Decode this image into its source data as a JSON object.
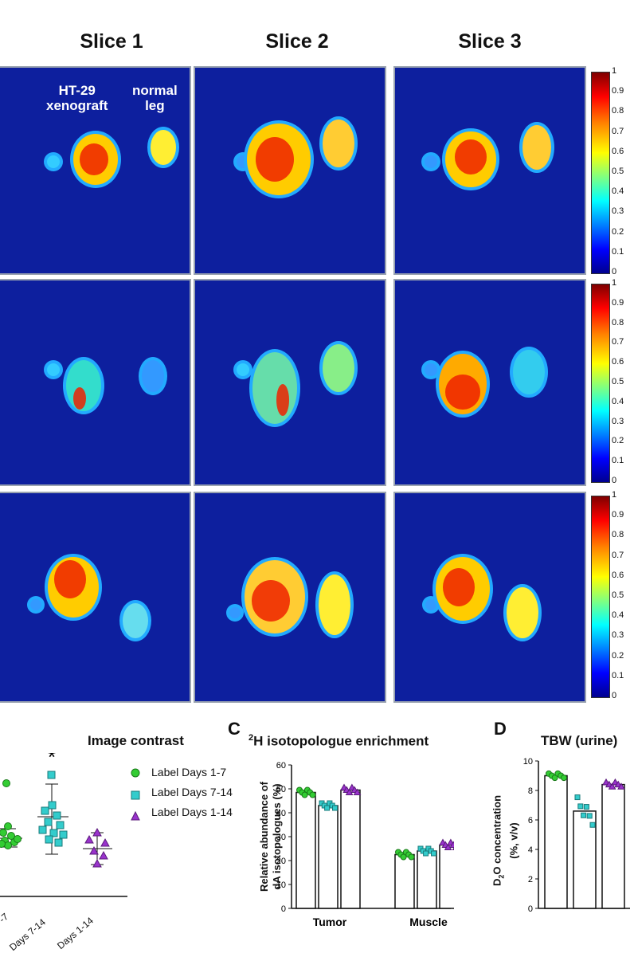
{
  "slice_titles": [
    "Slice 1",
    "Slice 2",
    "Slice 3"
  ],
  "annotations": {
    "xenograft_line1": "HT-29",
    "xenograft_line2": "xenograft",
    "normal_line1": "normal",
    "normal_line2": "leg"
  },
  "colorbar_ticks": [
    "1",
    "0.9",
    "0.8",
    "0.7",
    "0.6",
    "0.5",
    "0.4",
    "0.3",
    "0.2",
    "0.1",
    "0"
  ],
  "panel_b": {
    "title": "Image contrast",
    "star": "*",
    "x_ticks": [
      "-7",
      "Days 7-14",
      "Days 1-14"
    ],
    "legend": [
      {
        "label": "Label Days 1-7",
        "color": "#33cc33",
        "shape": "circle"
      },
      {
        "label": "Label Days 7-14",
        "color": "#33cccc",
        "shape": "square"
      },
      {
        "label": "Label Days 1-14",
        "color": "#9933cc",
        "shape": "triangle"
      }
    ]
  },
  "panel_c": {
    "label": "C",
    "title_sup": "2",
    "title": "H isotopologue enrichment",
    "ylabel_line1": "Relative abundance of",
    "ylabel_line2": "dA isotopologues (%)",
    "y_ticks": [
      "60",
      "50",
      "40",
      "30",
      "20",
      "10",
      "0"
    ],
    "x_labels": [
      "Tumor",
      "Muscle"
    ]
  },
  "panel_d": {
    "label": "D",
    "title": "TBW (urine)",
    "ylabel_line1_pre": "D",
    "ylabel_sub": "2",
    "ylabel_line1_post": "O concentration",
    "ylabel_line2": "(%, v/v)",
    "y_ticks": [
      "10",
      "8",
      "6",
      "4",
      "2",
      "0"
    ]
  },
  "chart_data": [
    {
      "type": "bar",
      "title": "2H isotopologue enrichment",
      "ylabel": "Relative abundance of dA isotopologues (%)",
      "categories": [
        "Tumor",
        "Muscle"
      ],
      "ylim": [
        0,
        60
      ],
      "series": [
        {
          "name": "Label Days 1-7",
          "values": [
            48.5,
            22.5
          ],
          "color": "#33cc33"
        },
        {
          "name": "Label Days 7-14",
          "values": [
            43,
            24
          ],
          "color": "#33cccc"
        },
        {
          "name": "Label Days 1-14",
          "values": [
            49.5,
            26.5
          ],
          "color": "#9933cc"
        }
      ]
    },
    {
      "type": "bar",
      "title": "TBW (urine)",
      "ylabel": "D2O concentration (%, v/v)",
      "categories": [
        "Label Days 1-7",
        "Label Days 7-14",
        "Label Days 1-14"
      ],
      "ylim": [
        0,
        10
      ],
      "values": [
        9.0,
        6.6,
        8.4
      ]
    }
  ]
}
